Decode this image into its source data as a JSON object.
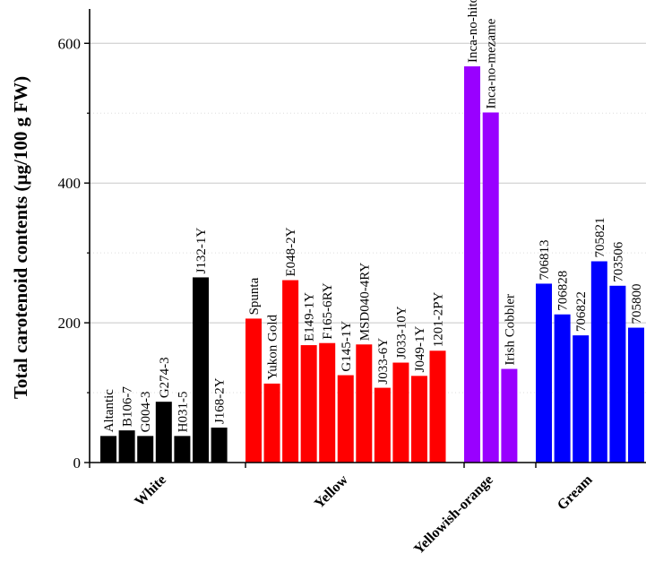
{
  "chart_data": {
    "type": "bar",
    "ylabel": "Total carotenoid contents (µg/100 g FW)",
    "ylim": [
      0,
      660
    ],
    "yticks": [
      0,
      200,
      400,
      600
    ],
    "minor_grid": true,
    "groups": [
      {
        "name": "White",
        "color": "#000000",
        "bars": [
          {
            "label": "Altantic",
            "value": 38
          },
          {
            "label": "B106-7",
            "value": 46
          },
          {
            "label": "G004-3",
            "value": 38
          },
          {
            "label": "G274-3",
            "value": 87
          },
          {
            "label": "H031-5",
            "value": 38
          },
          {
            "label": "J132-1Y",
            "value": 265
          },
          {
            "label": "J168-2Y",
            "value": 50
          }
        ]
      },
      {
        "name": "Yellow",
        "color": "#ff0000",
        "bars": [
          {
            "label": "Spunta",
            "value": 206
          },
          {
            "label": "Yukon Gold",
            "value": 113
          },
          {
            "label": "E048-2Y",
            "value": 261
          },
          {
            "label": "E149-1Y",
            "value": 168
          },
          {
            "label": "F165-6RY",
            "value": 171
          },
          {
            "label": "G145-1Y",
            "value": 125
          },
          {
            "label": "MSD040-4RY",
            "value": 169
          },
          {
            "label": "J033-6Y",
            "value": 107
          },
          {
            "label": "J033-10Y",
            "value": 143
          },
          {
            "label": "J049-1Y",
            "value": 124
          },
          {
            "label": "1201-2PY",
            "value": 160
          }
        ]
      },
      {
        "name": "Yellowish-orange",
        "color": "#9900ff",
        "bars": [
          {
            "label": "Inca-no-hitomi",
            "value": 567
          },
          {
            "label": "Inca-no-mezame",
            "value": 501
          },
          {
            "label": "Irish Cobbler",
            "value": 134
          }
        ]
      },
      {
        "name": "Gream",
        "color": "#0000ff",
        "bars": [
          {
            "label": "706813",
            "value": 256
          },
          {
            "label": "706828",
            "value": 212
          },
          {
            "label": "706822",
            "value": 182
          },
          {
            "label": "705821",
            "value": 288
          },
          {
            "label": "703506",
            "value": 253
          },
          {
            "label": "705800",
            "value": 193
          }
        ]
      }
    ]
  }
}
